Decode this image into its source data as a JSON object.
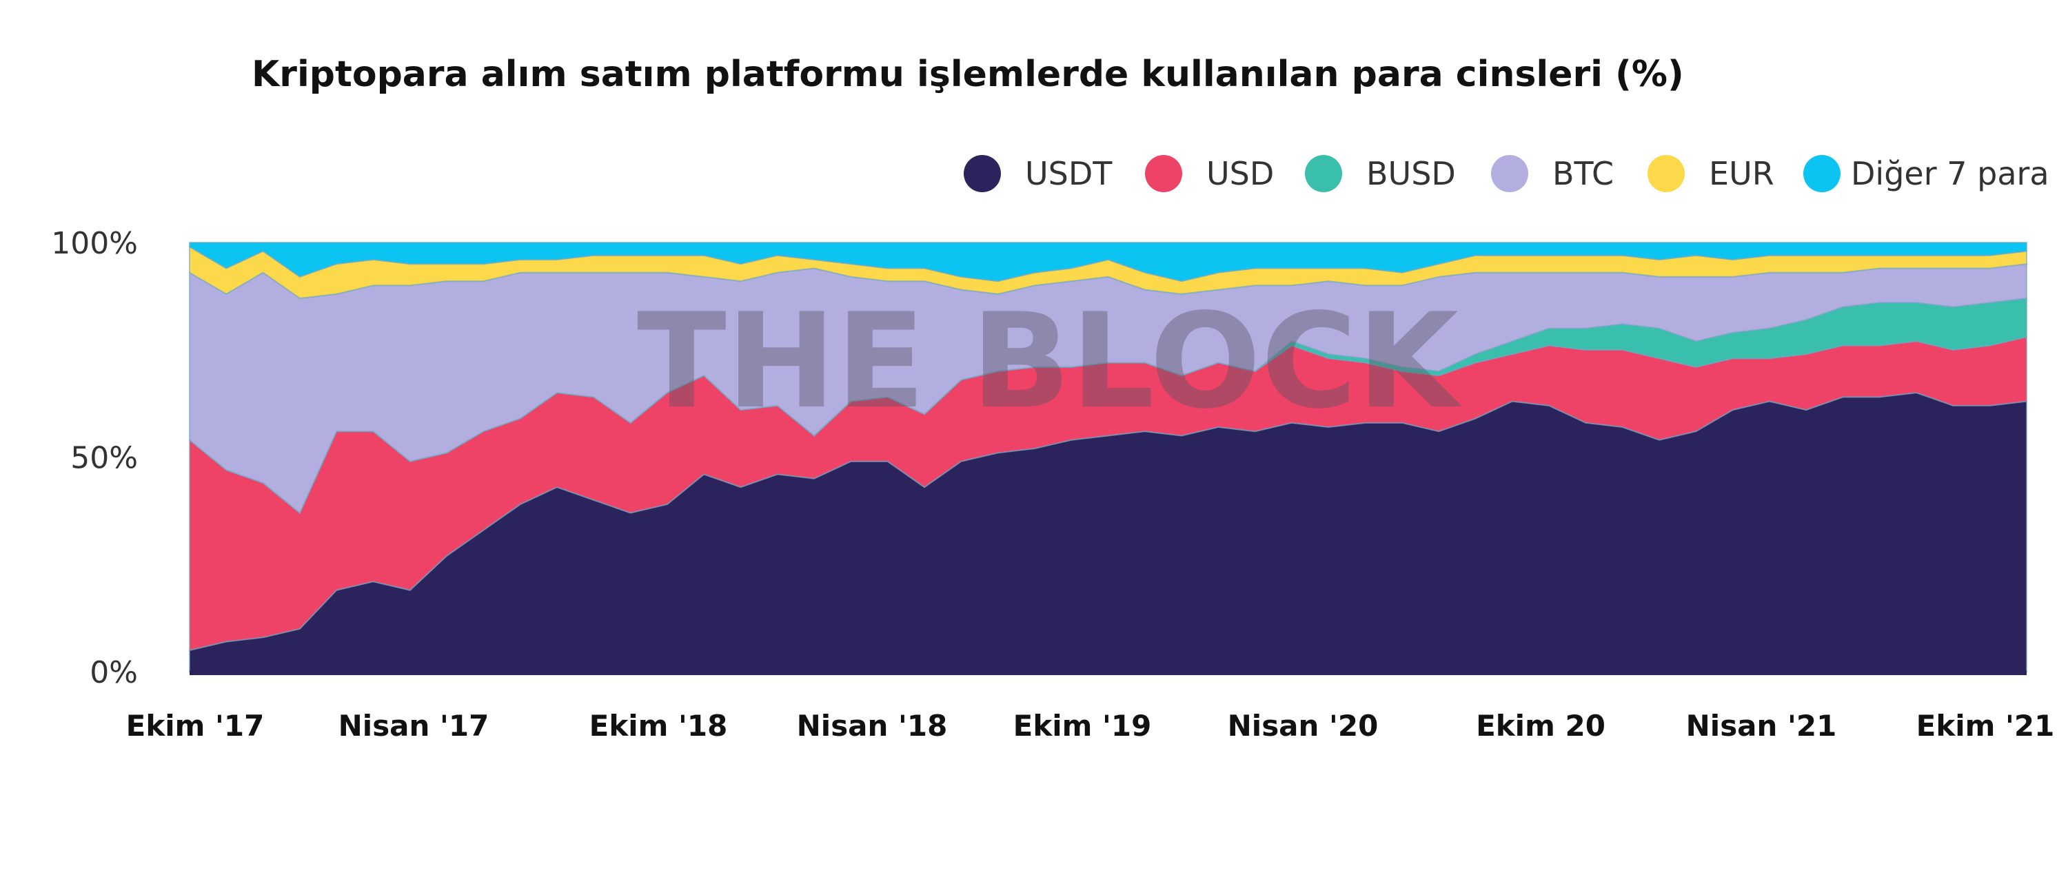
{
  "watermark": "THE BLOCK",
  "chart_data": {
    "type": "area",
    "stacked": true,
    "normalized_percent": true,
    "title": "Kriptopara alım satım platformu işlemlerde kullanılan para cinsleri (%)",
    "xlabel": "",
    "ylabel": "",
    "ylim": [
      0,
      100
    ],
    "y_ticks": [
      "0%",
      "50%",
      "100%"
    ],
    "x_tick_labels": [
      "Ekim '17",
      "Nisan '17",
      "Ekim '18",
      "Nisan '18",
      "Ekim '19",
      "Nisan '20",
      "Ekim 20",
      "Nisan '21",
      "Ekim '21"
    ],
    "legend_position": "top-right",
    "grid": false,
    "series": [
      {
        "name": "USDT",
        "color": "#2b235c",
        "values": [
          5,
          7,
          8,
          10,
          19,
          21,
          19,
          27,
          33,
          39,
          43,
          40,
          37,
          39,
          46,
          43,
          46,
          45,
          49,
          49,
          43,
          49,
          51,
          52,
          54,
          55,
          56,
          55,
          57,
          56,
          58,
          57,
          58,
          58,
          56,
          59,
          63,
          62,
          58,
          57,
          54,
          56,
          61,
          63,
          61,
          64,
          64,
          65,
          62,
          62,
          63
        ]
      },
      {
        "name": "USD",
        "color": "#ee4266",
        "values": [
          49,
          40,
          36,
          27,
          37,
          35,
          30,
          24,
          23,
          20,
          22,
          24,
          21,
          26,
          23,
          18,
          16,
          10,
          14,
          15,
          17,
          19,
          19,
          19,
          17,
          17,
          16,
          14,
          15,
          14,
          18,
          16,
          14,
          12,
          13,
          13,
          11,
          14,
          17,
          18,
          19,
          15,
          12,
          10,
          13,
          12,
          12,
          12,
          13,
          14,
          15
        ]
      },
      {
        "name": "BUSD",
        "color": "#3bbfad",
        "values": [
          0,
          0,
          0,
          0,
          0,
          0,
          0,
          0,
          0,
          0,
          0,
          0,
          0,
          0,
          0,
          0,
          0,
          0,
          0,
          0,
          0,
          0,
          0,
          0,
          0,
          0,
          0,
          0,
          0,
          0,
          1,
          1,
          1,
          1,
          1,
          2,
          3,
          4,
          5,
          6,
          7,
          6,
          6,
          7,
          8,
          9,
          10,
          9,
          10,
          10,
          9
        ]
      },
      {
        "name": "BTC",
        "color": "#b3aee0",
        "values": [
          39,
          41,
          49,
          50,
          32,
          34,
          41,
          40,
          35,
          34,
          28,
          29,
          35,
          28,
          23,
          30,
          31,
          39,
          29,
          27,
          31,
          21,
          18,
          19,
          20,
          20,
          17,
          19,
          17,
          20,
          13,
          17,
          17,
          19,
          22,
          19,
          16,
          13,
          13,
          12,
          12,
          15,
          13,
          13,
          11,
          8,
          8,
          8,
          9,
          8,
          8
        ]
      },
      {
        "name": "EUR",
        "color": "#fcd94b",
        "values": [
          6,
          6,
          5,
          5,
          7,
          6,
          5,
          4,
          4,
          3,
          3,
          4,
          4,
          4,
          5,
          4,
          4,
          2,
          3,
          3,
          3,
          3,
          3,
          3,
          3,
          4,
          4,
          3,
          4,
          4,
          4,
          3,
          4,
          3,
          3,
          4,
          4,
          4,
          4,
          4,
          4,
          5,
          4,
          4,
          4,
          4,
          3,
          3,
          3,
          3,
          3
        ]
      },
      {
        "name": "Diğer 7 para",
        "color": "#0cc4f2",
        "values": [
          1,
          6,
          2,
          8,
          5,
          4,
          5,
          5,
          5,
          4,
          4,
          3,
          3,
          3,
          3,
          5,
          3,
          4,
          5,
          6,
          6,
          8,
          9,
          7,
          6,
          4,
          7,
          9,
          7,
          6,
          6,
          6,
          6,
          7,
          5,
          3,
          3,
          3,
          3,
          3,
          4,
          3,
          4,
          3,
          3,
          3,
          3,
          3,
          3,
          3,
          2
        ]
      }
    ]
  }
}
